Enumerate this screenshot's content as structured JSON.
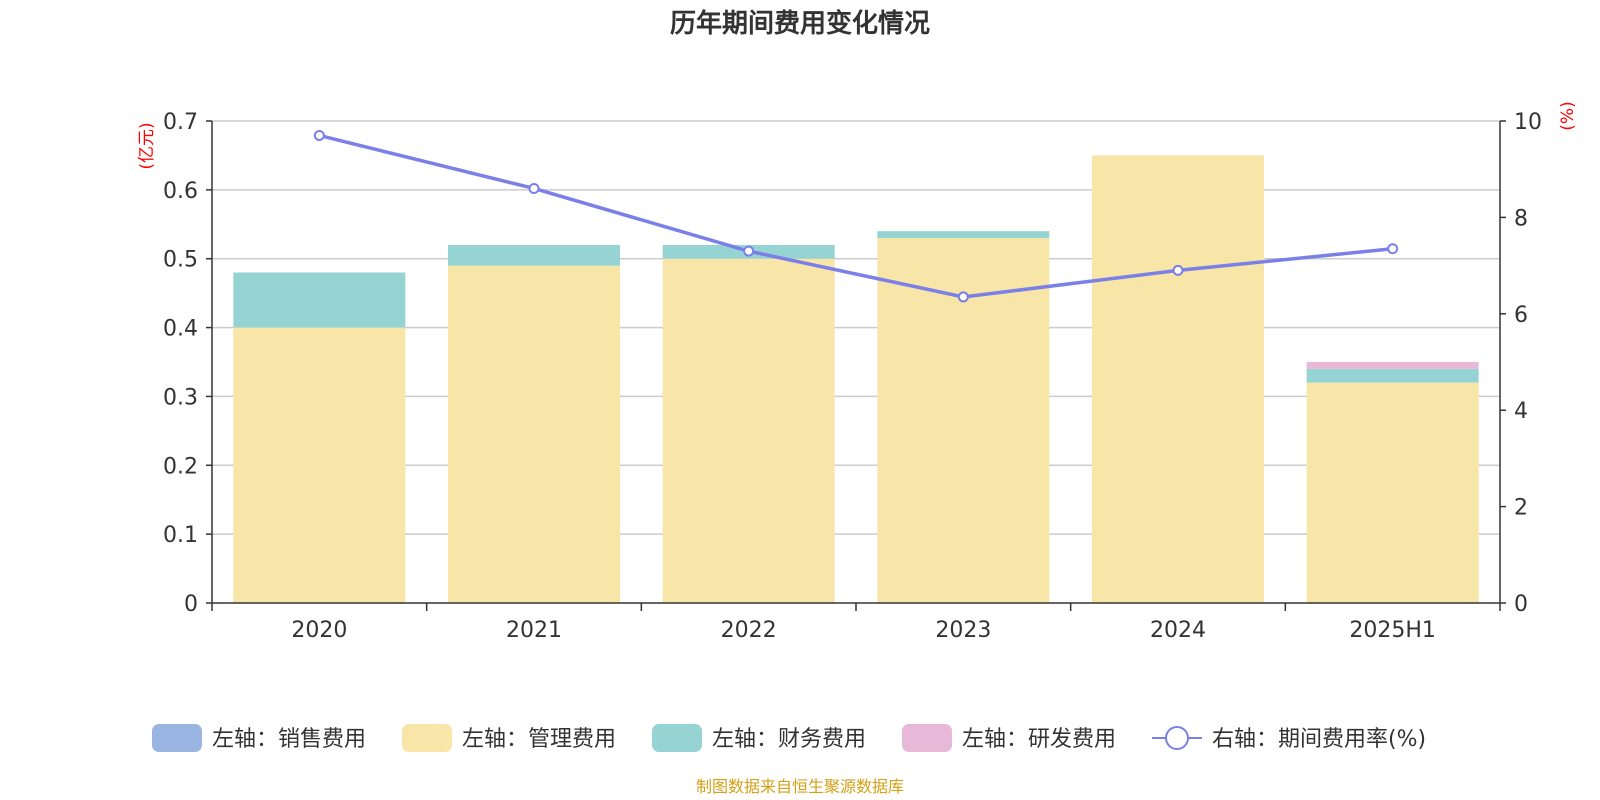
{
  "chart_data": {
    "type": "bar",
    "title": "历年期间费用变化情况",
    "categories": [
      "2020",
      "2021",
      "2022",
      "2023",
      "2024",
      "2025H1"
    ],
    "left_axis": {
      "unit": "(亿元)",
      "ylim": [
        0,
        0.7
      ],
      "ticks": [
        "0",
        "0.1",
        "0.2",
        "0.3",
        "0.4",
        "0.5",
        "0.6",
        "0.7"
      ]
    },
    "right_axis": {
      "unit": "(%)",
      "ylim": [
        0,
        10
      ],
      "ticks": [
        "0",
        "2",
        "4",
        "6",
        "8",
        "10"
      ]
    },
    "series": [
      {
        "name": "左轴：销售费用",
        "kind": "bar",
        "axis": "left",
        "color": "#9ab5e1",
        "values": [
          0,
          0,
          0,
          0,
          0,
          0
        ]
      },
      {
        "name": "左轴：管理费用",
        "kind": "bar",
        "axis": "left",
        "color": "#f7e6a7",
        "values": [
          0.4,
          0.49,
          0.5,
          0.53,
          0.65,
          0.32
        ]
      },
      {
        "name": "左轴：财务费用",
        "kind": "bar",
        "axis": "left",
        "color": "#96d4d4",
        "values": [
          0.08,
          0.03,
          0.02,
          0.01,
          0,
          0.02
        ]
      },
      {
        "name": "左轴：研发费用",
        "kind": "bar",
        "axis": "left",
        "color": "#e8b8d8",
        "values": [
          0,
          0,
          0,
          0,
          0,
          0.01
        ]
      },
      {
        "name": "右轴：期间费用率(%)",
        "kind": "line",
        "axis": "right",
        "color": "#7a80e8",
        "values": [
          9.7,
          8.6,
          7.3,
          6.35,
          6.9,
          7.35
        ]
      }
    ],
    "grid": true,
    "legend_position": "bottom",
    "source": "制图数据来自恒生聚源数据库"
  }
}
